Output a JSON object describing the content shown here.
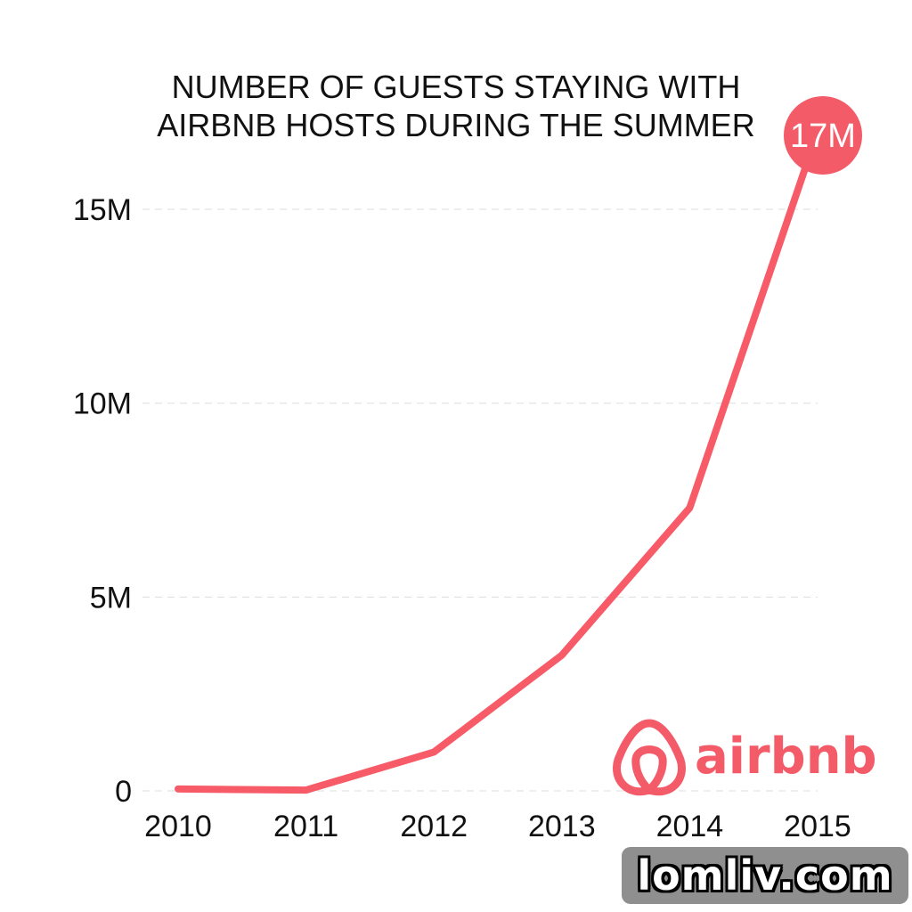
{
  "colors": {
    "line": "#f75b68",
    "callout": "#f45b69",
    "brand": "#f45b69",
    "grid": "#dddddd",
    "text": "#111111"
  },
  "chart_data": {
    "type": "line",
    "title_lines": [
      "NUMBER OF GUESTS STAYING WITH",
      "AIRBNB HOSTS DURING THE SUMMER"
    ],
    "x": [
      "2010",
      "2011",
      "2012",
      "2013",
      "2014",
      "2015"
    ],
    "values": [
      0.05,
      0.02,
      1.0,
      3.5,
      7.3,
      17.0
    ],
    "units": "millions",
    "ylim": [
      0,
      17
    ],
    "yticks": [
      0,
      5,
      10,
      15
    ],
    "ytick_labels": [
      "0",
      "5M",
      "10M",
      "15M"
    ],
    "grid": true,
    "callout": {
      "label": "17M",
      "point_index": 5
    }
  },
  "brand": {
    "name": "airbnb",
    "icon": "airbnb-belo-icon"
  },
  "watermark": {
    "text": "lomliv.com"
  }
}
